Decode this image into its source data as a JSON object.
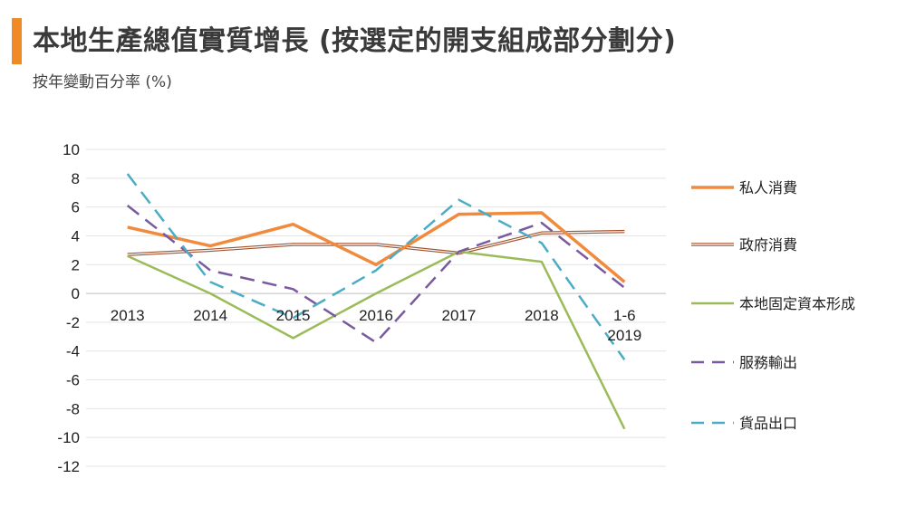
{
  "header": {
    "title": "本地生產總值實質增長 (按選定的開支組成部分劃分)",
    "subtitle": "按年變動百分率 (%)",
    "accent_color": "#f08a24"
  },
  "chart_data": {
    "type": "line",
    "title": "本地生產總值實質增長 (按選定的開支組成部分劃分)",
    "subtitle": "按年變動百分率 (%)",
    "categories": [
      "2013",
      "2014",
      "2015",
      "2016",
      "2017",
      "2018",
      "1-6\n2019"
    ],
    "ylim": [
      -12,
      10
    ],
    "yticks": [
      10,
      8,
      6,
      4,
      2,
      0,
      -2,
      -4,
      -6,
      -8,
      -10,
      -12
    ],
    "grid": true,
    "legend_position": "right",
    "series": [
      {
        "name": "私人消費",
        "values": [
          4.6,
          3.3,
          4.8,
          2.0,
          5.5,
          5.6,
          0.8
        ],
        "color": "#f08a3c",
        "style": "solid-thick"
      },
      {
        "name": "政府消費",
        "values": [
          2.7,
          3.0,
          3.4,
          3.4,
          2.8,
          4.2,
          4.3
        ],
        "color": "#a0522d",
        "style": "double"
      },
      {
        "name": "本地固定資本形成",
        "values": [
          2.6,
          0.0,
          -3.1,
          0.0,
          2.9,
          2.2,
          -9.4
        ],
        "color": "#9bbb59",
        "style": "solid"
      },
      {
        "name": "服務輸出",
        "values": [
          6.1,
          1.6,
          0.3,
          -3.4,
          2.9,
          4.9,
          0.4
        ],
        "color": "#7a5a9e",
        "style": "dash"
      },
      {
        "name": "貨品出口",
        "values": [
          8.3,
          0.8,
          -1.7,
          1.6,
          6.5,
          3.5,
          -4.6
        ],
        "color": "#4bacc6",
        "style": "dash"
      }
    ]
  }
}
